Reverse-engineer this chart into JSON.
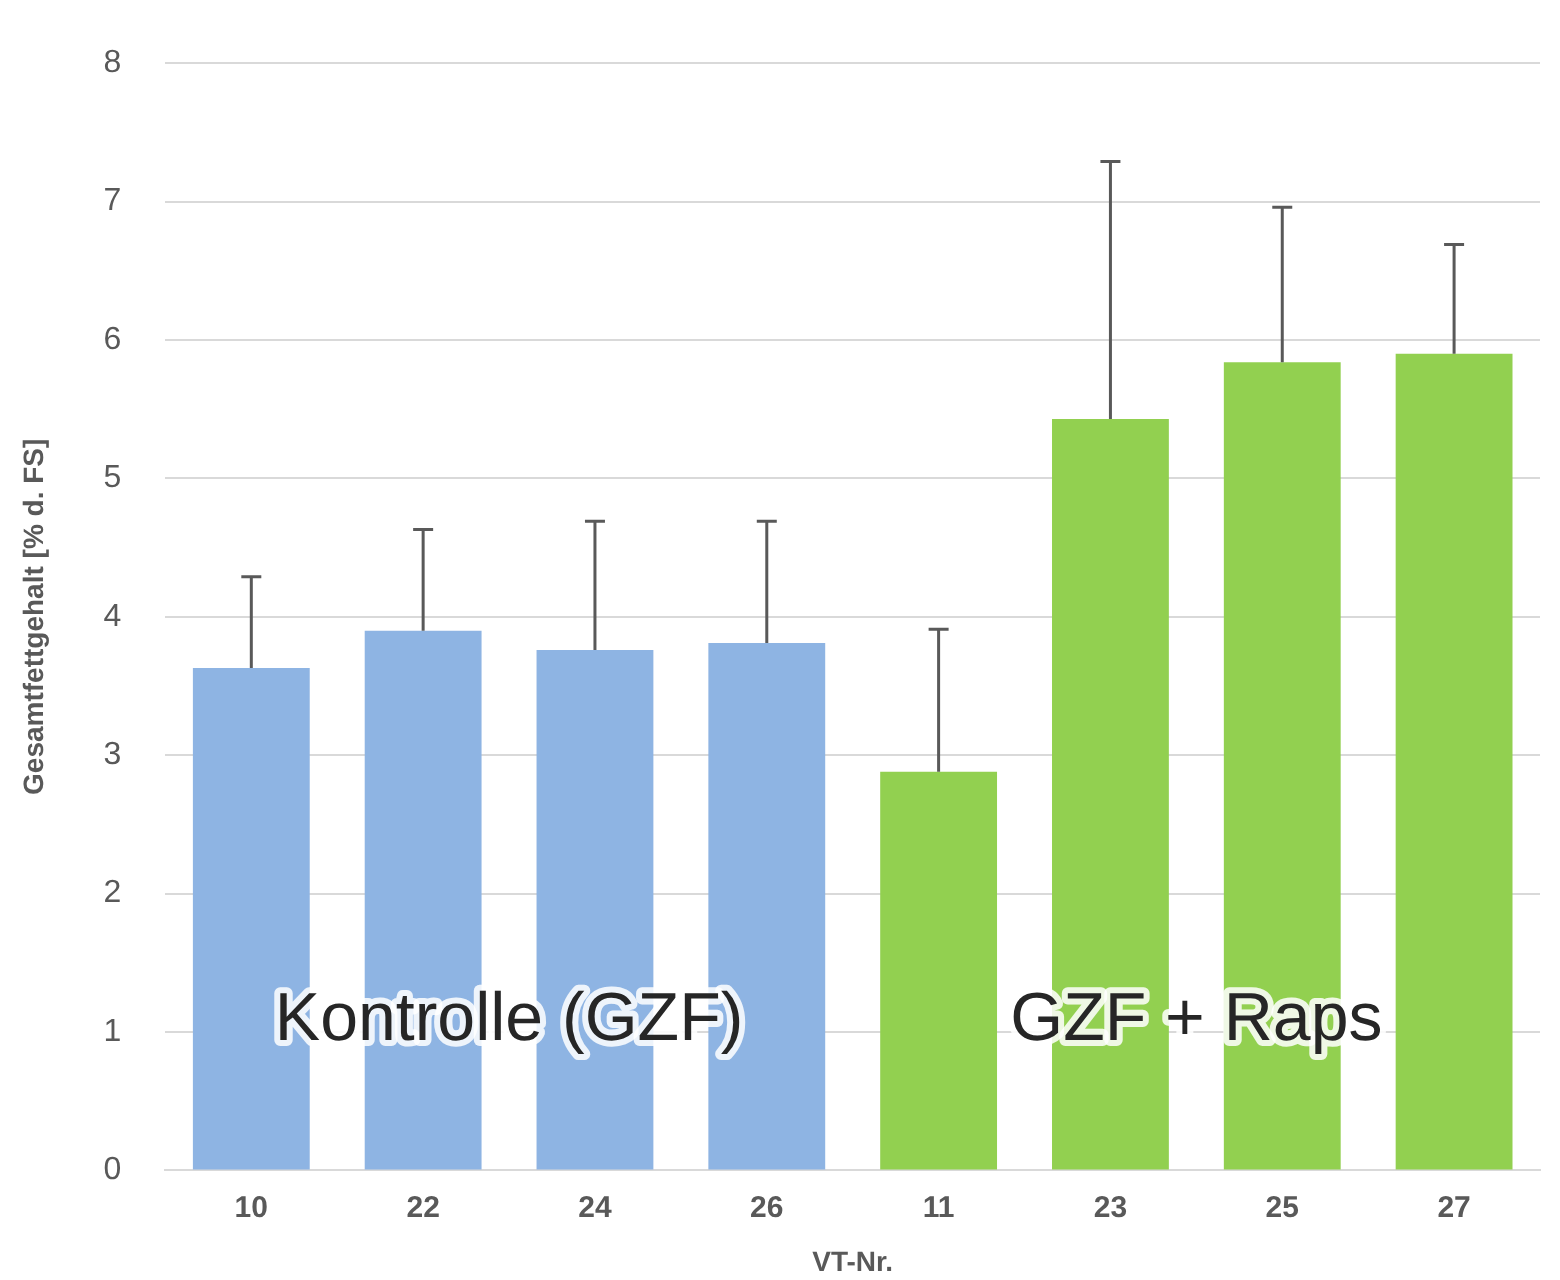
{
  "chart_data": {
    "type": "bar",
    "categories": [
      "10",
      "22",
      "24",
      "26",
      "11",
      "23",
      "25",
      "27"
    ],
    "values": [
      3.63,
      3.9,
      3.76,
      3.81,
      2.88,
      5.43,
      5.84,
      5.9
    ],
    "colors": [
      "#8eb4e3",
      "#8eb4e3",
      "#8eb4e3",
      "#8eb4e3",
      "#92d050",
      "#92d050",
      "#92d050",
      "#92d050"
    ],
    "errors": [
      [
        3.63,
        4.29
      ],
      [
        3.9,
        4.63
      ],
      [
        3.76,
        4.69
      ],
      [
        3.81,
        4.69
      ],
      [
        2.88,
        3.91
      ],
      [
        5.43,
        7.29
      ],
      [
        5.84,
        6.96
      ],
      [
        5.9,
        6.69
      ]
    ],
    "ylim": [
      0,
      8
    ],
    "yticks": [
      0,
      1,
      2,
      3,
      4,
      5,
      6,
      7,
      8
    ],
    "xlabel": "VT-Nr.",
    "ylabel": "Gesamtfettgehalt [% d. FS]",
    "annotations": [
      "Kontrolle (GZF)",
      "GZF + Raps"
    ],
    "grid": "y",
    "legend": false
  }
}
